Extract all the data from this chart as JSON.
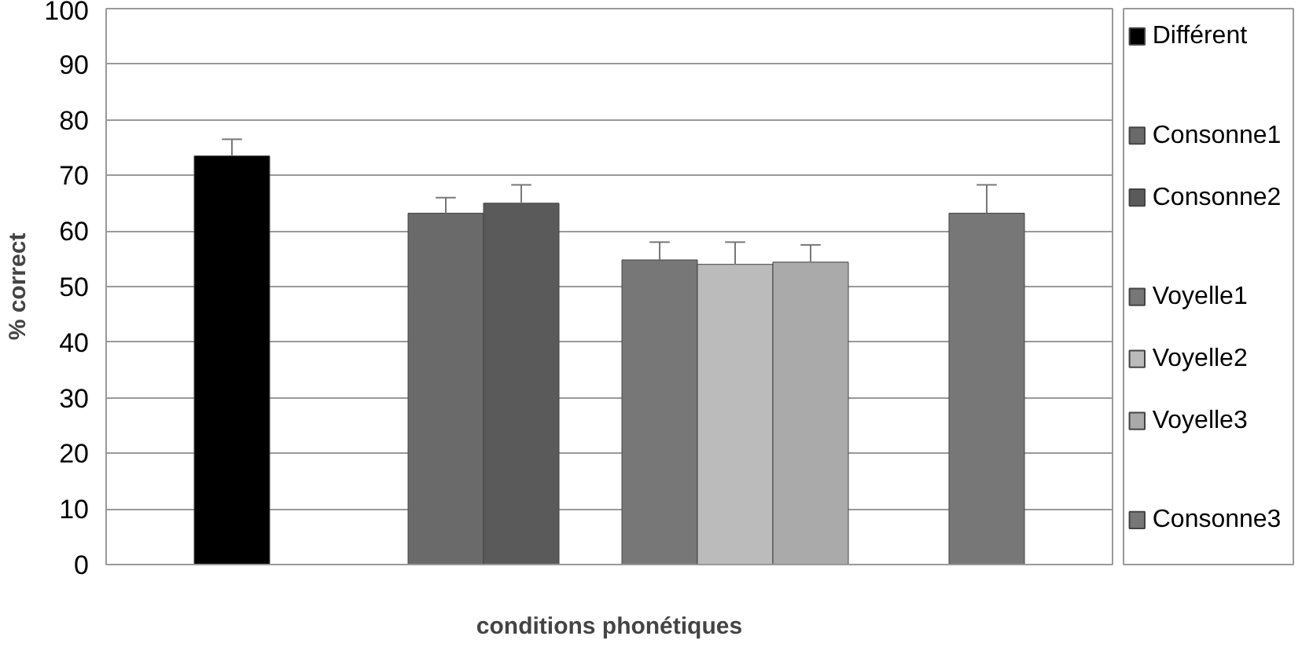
{
  "chart_data": {
    "type": "bar",
    "xlabel": "conditions phonétiques",
    "ylabel": "% correct",
    "categories": [
      null,
      null,
      null,
      null
    ],
    "series": [
      {
        "name": "Différent",
        "color": "#000000",
        "values": [
          73.5,
          null,
          null,
          null
        ],
        "errors": [
          [
            73.5,
            76.5
          ],
          null,
          null,
          null
        ]
      },
      {
        "name": "Consonne1",
        "color": "#6a6a6a",
        "values": [
          null,
          63.2,
          null,
          null
        ],
        "errors": [
          null,
          [
            63.2,
            66
          ],
          null,
          null
        ]
      },
      {
        "name": "Consonne2",
        "color": "#5a5a5a",
        "values": [
          null,
          65,
          null,
          null
        ],
        "errors": [
          null,
          [
            65,
            68.3
          ],
          null,
          null
        ]
      },
      {
        "name": "Voyelle1",
        "color": "#777777",
        "values": [
          null,
          null,
          54.8,
          null
        ],
        "errors": [
          null,
          null,
          [
            54.8,
            58
          ],
          null
        ]
      },
      {
        "name": "Voyelle2",
        "color": "#bbbbbb",
        "values": [
          null,
          null,
          54,
          null
        ],
        "errors": [
          null,
          null,
          [
            54,
            58
          ],
          null
        ]
      },
      {
        "name": "Voyelle3",
        "color": "#aaaaaa",
        "values": [
          null,
          null,
          54.4,
          null
        ],
        "errors": [
          null,
          null,
          [
            54.4,
            57.5
          ],
          null
        ]
      },
      {
        "name": "Consonne3",
        "color": "#777777",
        "values": [
          null,
          null,
          null,
          63.2
        ],
        "errors": [
          null,
          null,
          null,
          [
            63.2,
            68.3
          ]
        ]
      }
    ],
    "ylim": [
      0,
      100
    ],
    "yticks": [
      0,
      10,
      20,
      30,
      40,
      50,
      60,
      70,
      80,
      90,
      100
    ],
    "grid": "y",
    "legend": "right"
  }
}
